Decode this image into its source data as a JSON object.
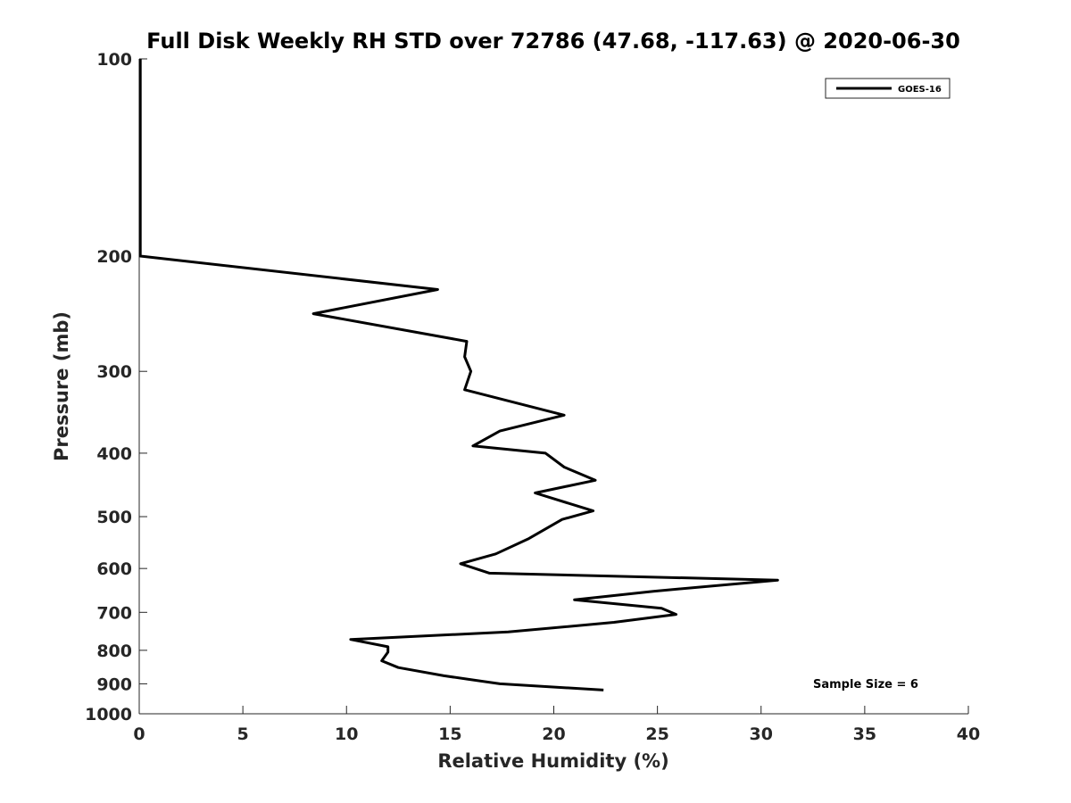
{
  "chart_data": {
    "type": "line",
    "title": "Full Disk Weekly RH STD over 72786 (47.68, -117.63) @ 2020-06-30",
    "xlabel": "Relative Humidity (%)",
    "ylabel": "Pressure (mb)",
    "xlim": [
      0,
      40
    ],
    "ylim": [
      100,
      1000
    ],
    "y_scale": "log",
    "y_reversed": true,
    "xticks": [
      0,
      5,
      10,
      15,
      20,
      25,
      30,
      35,
      40
    ],
    "yticks": [
      100,
      200,
      300,
      400,
      500,
      600,
      700,
      800,
      900,
      1000
    ],
    "grid": false,
    "legend": {
      "placement": "top-right",
      "entries": [
        "GOES-16"
      ]
    },
    "annotation": "Sample Size = 6",
    "series": [
      {
        "name": "GOES-16",
        "color": "#000000",
        "x": [
          0.05,
          0.05,
          0.05,
          0.05,
          0.05,
          14.4,
          8.4,
          15.8,
          15.7,
          16.0,
          15.7,
          20.5,
          17.4,
          16.1,
          19.6,
          20.5,
          22.0,
          19.1,
          21.9,
          20.4,
          18.8,
          17.2,
          15.5,
          16.9,
          30.8,
          24.8,
          21.0,
          25.2,
          25.9,
          22.9,
          17.8,
          10.2,
          12.0,
          12.0,
          11.7,
          12.5,
          14.7,
          17.4,
          22.4
        ],
        "y": [
          100,
          120,
          140,
          170,
          200,
          225,
          245,
          270,
          285,
          300,
          320,
          350,
          370,
          390,
          400,
          420,
          440,
          460,
          490,
          505,
          540,
          570,
          590,
          610,
          625,
          650,
          670,
          690,
          705,
          725,
          750,
          770,
          790,
          805,
          830,
          850,
          875,
          900,
          920
        ]
      }
    ]
  }
}
